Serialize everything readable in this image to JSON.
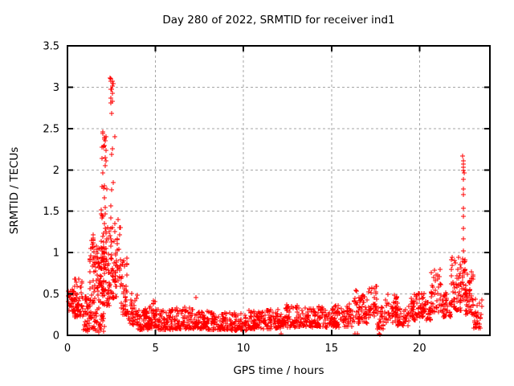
{
  "figure": {
    "title": "Day 280 of 2022, SRMTID for receiver ind1",
    "x_axis_label": "GPS time / hours",
    "y_axis_label": "SRMTID / TECUs"
  },
  "colors": {
    "marker": "#ff0000",
    "grid": "#a6a6a6",
    "border": "#000000",
    "background": "#ffffff",
    "text": "#000000"
  },
  "chart_data": {
    "type": "scatter",
    "title": "Day 280 of 2022, SRMTID for receiver ind1",
    "xlabel": "GPS time / hours",
    "ylabel": "SRMTID / TECUs",
    "xlim": [
      0,
      24
    ],
    "ylim": [
      0,
      3.5
    ],
    "xticks": [
      0,
      5,
      10,
      15,
      20
    ],
    "xtick_labels": [
      "0",
      "5",
      "10",
      "15",
      "20"
    ],
    "yticks": [
      0,
      0.5,
      1,
      1.5,
      2,
      2.5,
      3,
      3.5
    ],
    "ytick_labels": [
      "0",
      "0.5",
      "1",
      "1.5",
      "2",
      "2.5",
      "3",
      "3.5"
    ],
    "grid": true,
    "grid_style": "dashed",
    "legend": "none",
    "marker": "plus",
    "marker_size_px": 7,
    "marker_color": "#ff0000",
    "series_name": "SRMTID",
    "notable_features": [
      {
        "desc": "main spike peak",
        "x": 2.5,
        "y": 3.12
      },
      {
        "desc": "secondary spike",
        "x": 2.05,
        "y": 2.45
      },
      {
        "desc": "evening spike",
        "x": 22.5,
        "y": 2.17
      },
      {
        "desc": "quiet daytime baseline",
        "x_range": [
          4.5,
          16
        ],
        "y_range": [
          0.05,
          0.35
        ]
      }
    ],
    "points": [
      [
        22.47,
        2.17
      ],
      [
        22.5,
        2.11
      ],
      [
        22.48,
        2.07
      ],
      [
        22.51,
        2.03
      ],
      [
        22.49,
        1.99
      ],
      [
        22.52,
        1.96
      ],
      [
        22.48,
        1.89
      ],
      [
        22.5,
        1.77
      ],
      [
        22.49,
        1.7
      ],
      [
        22.51,
        1.54
      ],
      [
        22.48,
        1.44
      ],
      [
        22.5,
        1.29
      ],
      [
        22.49,
        1.17
      ],
      [
        22.51,
        1.02
      ],
      [
        7.3,
        0.46
      ],
      [
        12.15,
        0.02
      ],
      [
        16.35,
        0.02
      ],
      [
        16.45,
        0.02
      ],
      [
        17.7,
        0.02
      ],
      [
        17.73,
        0.01
      ]
    ],
    "bands_key": [
      "x_start",
      "x_end",
      "count",
      "y_min",
      "y_max",
      "low_bias_power"
    ],
    "bands": [
      [
        0.0,
        0.35,
        30,
        0.28,
        0.58,
        1.1
      ],
      [
        0.35,
        0.9,
        55,
        0.22,
        0.7,
        1.5
      ],
      [
        0.9,
        1.25,
        40,
        0.05,
        0.5,
        1.2
      ],
      [
        1.25,
        1.55,
        35,
        0.2,
        0.95,
        1.2
      ],
      [
        1.3,
        1.5,
        12,
        0.95,
        1.35,
        1.0
      ],
      [
        1.4,
        2.1,
        30,
        0.04,
        0.25,
        1.2
      ],
      [
        1.55,
        2.1,
        70,
        0.25,
        1.1,
        1.1
      ],
      [
        1.9,
        2.25,
        45,
        0.5,
        1.85,
        1.2
      ],
      [
        1.95,
        2.2,
        16,
        1.95,
        2.47,
        0.8
      ],
      [
        2.2,
        2.5,
        35,
        0.35,
        1.55,
        1.3
      ],
      [
        2.4,
        2.62,
        12,
        2.78,
        3.13,
        1.0
      ],
      [
        2.45,
        2.72,
        8,
        1.4,
        2.72,
        1.0
      ],
      [
        2.5,
        3.0,
        55,
        0.45,
        1.42,
        1.4
      ],
      [
        3.0,
        3.45,
        45,
        0.25,
        0.95,
        1.5
      ],
      [
        3.45,
        4.0,
        45,
        0.13,
        0.52,
        1.5
      ],
      [
        4.0,
        4.6,
        50,
        0.07,
        0.33,
        1.5
      ],
      [
        4.6,
        5.2,
        50,
        0.09,
        0.42,
        1.7
      ],
      [
        5.2,
        6.2,
        70,
        0.07,
        0.32,
        1.7
      ],
      [
        6.2,
        7.2,
        70,
        0.08,
        0.34,
        1.7
      ],
      [
        7.2,
        8.2,
        70,
        0.07,
        0.3,
        1.7
      ],
      [
        8.2,
        9.2,
        70,
        0.07,
        0.28,
        1.7
      ],
      [
        9.2,
        10.2,
        70,
        0.06,
        0.28,
        1.7
      ],
      [
        10.2,
        11.2,
        70,
        0.08,
        0.3,
        1.7
      ],
      [
        11.2,
        12.2,
        70,
        0.08,
        0.32,
        1.7
      ],
      [
        12.2,
        13.2,
        70,
        0.1,
        0.38,
        1.7
      ],
      [
        13.2,
        14.2,
        70,
        0.1,
        0.34,
        1.7
      ],
      [
        14.2,
        15.2,
        70,
        0.1,
        0.35,
        1.6
      ],
      [
        15.2,
        16.2,
        70,
        0.1,
        0.38,
        1.5
      ],
      [
        16.2,
        17.1,
        60,
        0.14,
        0.55,
        1.5
      ],
      [
        17.1,
        17.6,
        35,
        0.18,
        0.62,
        1.3
      ],
      [
        17.6,
        17.95,
        25,
        0.08,
        0.35,
        1.4
      ],
      [
        17.95,
        18.75,
        45,
        0.15,
        0.5,
        1.4
      ],
      [
        18.75,
        19.4,
        40,
        0.12,
        0.4,
        1.5
      ],
      [
        19.4,
        19.9,
        35,
        0.18,
        0.5,
        1.3
      ],
      [
        19.9,
        20.35,
        35,
        0.22,
        0.52,
        1.4
      ],
      [
        20.35,
        20.65,
        22,
        0.18,
        0.42,
        1.3
      ],
      [
        20.65,
        21.35,
        50,
        0.28,
        0.8,
        1.5
      ],
      [
        21.35,
        21.75,
        28,
        0.22,
        0.52,
        1.3
      ],
      [
        21.75,
        22.35,
        55,
        0.3,
        0.95,
        1.4
      ],
      [
        22.35,
        22.6,
        28,
        0.4,
        0.95,
        1.0
      ],
      [
        22.6,
        23.05,
        45,
        0.25,
        0.78,
        1.3
      ],
      [
        23.05,
        23.6,
        30,
        0.08,
        0.45,
        1.2
      ]
    ]
  }
}
